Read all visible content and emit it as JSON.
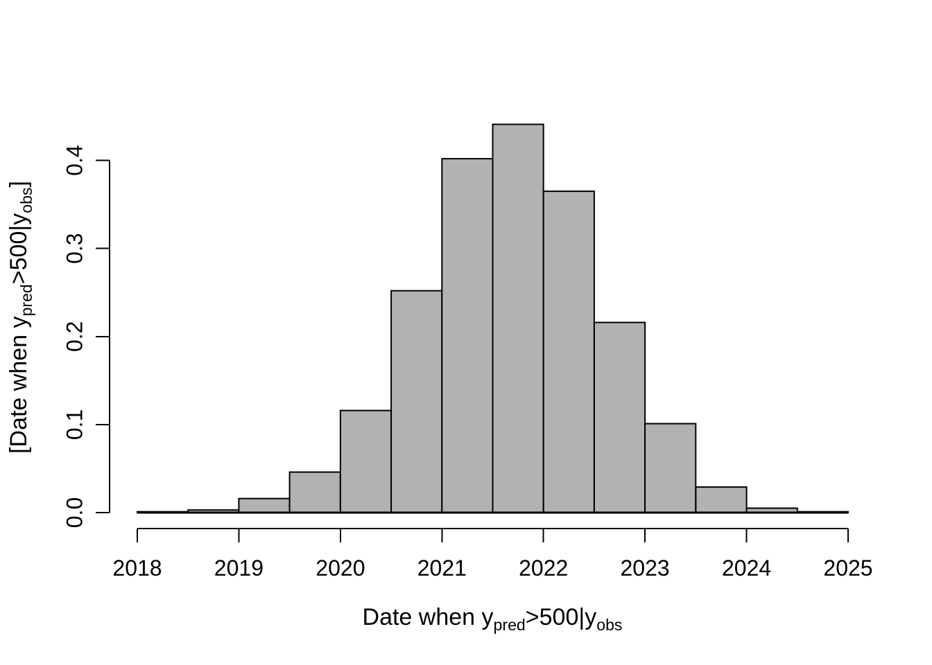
{
  "chart_data": {
    "type": "bar",
    "subtype": "histogram-density",
    "title": "",
    "xlabel": "Date when y_pred>500|y_obs",
    "ylabel": "[Date when y_pred>500|y_obs]",
    "xlabel_parts": {
      "p1": "Date when y",
      "sub1": "pred",
      "p2": ">500|y",
      "sub2": "obs",
      "p3": ""
    },
    "ylabel_parts": {
      "p1": "[Date when y",
      "sub1": "pred",
      "p2": ">500|y",
      "sub2": "obs",
      "p3": "]"
    },
    "bins": {
      "start": 2018,
      "width": 0.5,
      "densities": [
        0.001,
        0.003,
        0.016,
        0.046,
        0.116,
        0.252,
        0.402,
        0.441,
        0.365,
        0.216,
        0.101,
        0.029,
        0.005,
        0.001
      ]
    },
    "x_axis": {
      "min": 2018,
      "max": 2025,
      "ticks": [
        2018,
        2019,
        2020,
        2021,
        2022,
        2023,
        2024,
        2025
      ],
      "tick_labels": [
        "2018",
        "2019",
        "2020",
        "2021",
        "2022",
        "2023",
        "2024",
        "2025"
      ]
    },
    "y_axis": {
      "min": 0,
      "max": 0.4,
      "ticks": [
        0,
        0.1,
        0.2,
        0.3,
        0.4
      ],
      "tick_labels": [
        "0.0",
        "0.1",
        "0.2",
        "0.3",
        "0.4"
      ]
    },
    "grid": "off",
    "legend": "none",
    "colors": {
      "bar_fill": "#b2b2b2",
      "bar_stroke": "#000000",
      "axis": "#000000",
      "background": "#ffffff"
    }
  }
}
